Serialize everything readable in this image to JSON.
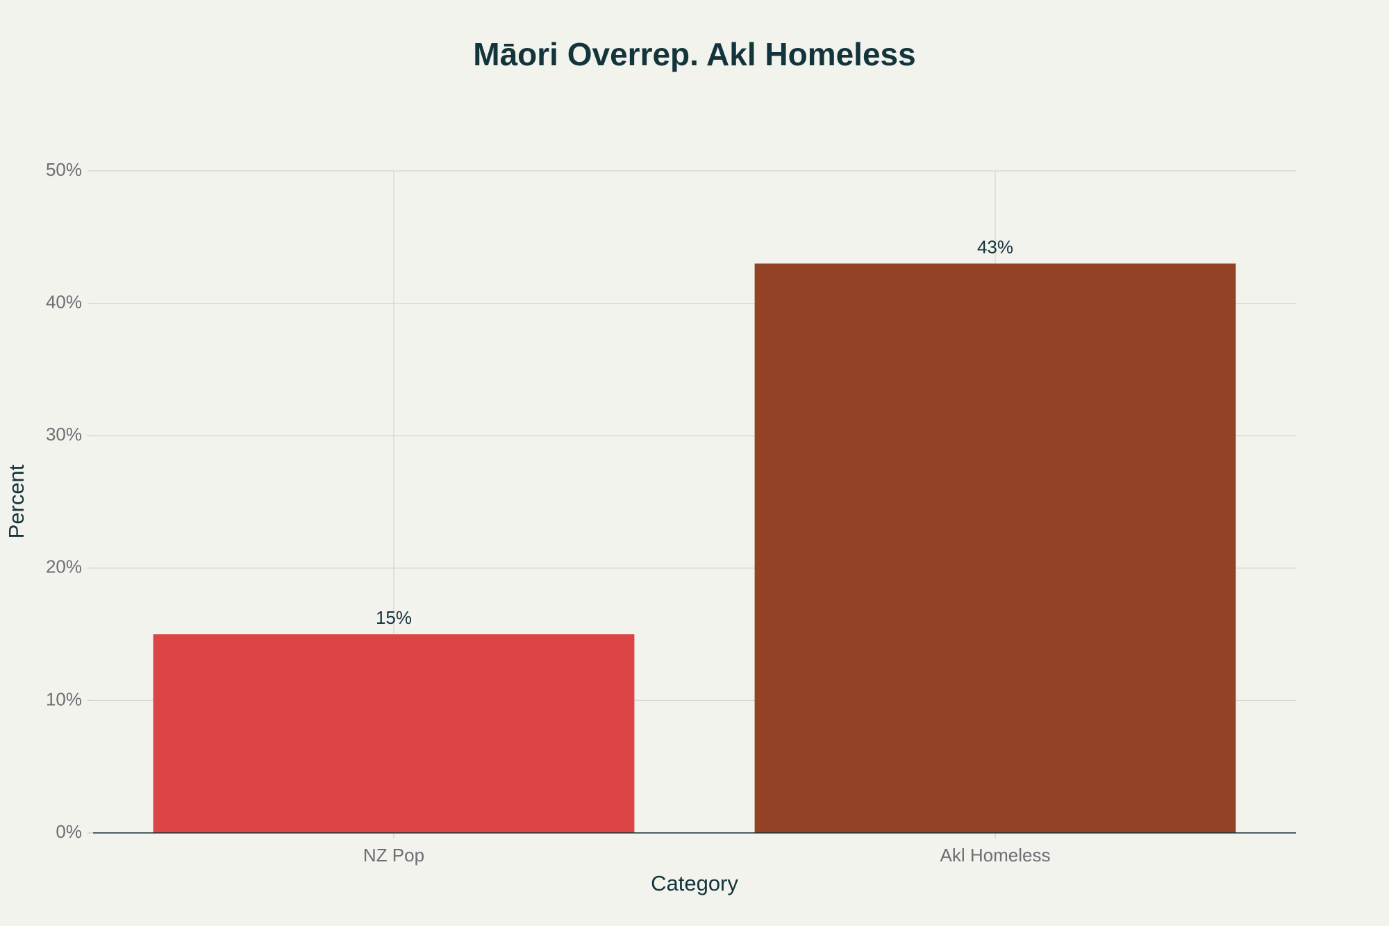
{
  "chart_data": {
    "type": "bar",
    "title": "Māori Overrep. Akl Homeless",
    "x_label": "Category",
    "y_label": "Percent",
    "categories": [
      "NZ Pop",
      "Akl Homeless"
    ],
    "values": [
      15,
      43
    ],
    "value_labels": [
      "15%",
      "43%"
    ],
    "colors": [
      "#db4545",
      "#944225"
    ],
    "ylim": [
      0,
      50
    ],
    "yticks": [
      {
        "value": 0,
        "label": "0%"
      },
      {
        "value": 10,
        "label": "10%"
      },
      {
        "value": 20,
        "label": "20%"
      },
      {
        "value": 30,
        "label": "30%"
      },
      {
        "value": 40,
        "label": "40%"
      },
      {
        "value": 50,
        "label": "50%"
      }
    ],
    "grid": true
  }
}
